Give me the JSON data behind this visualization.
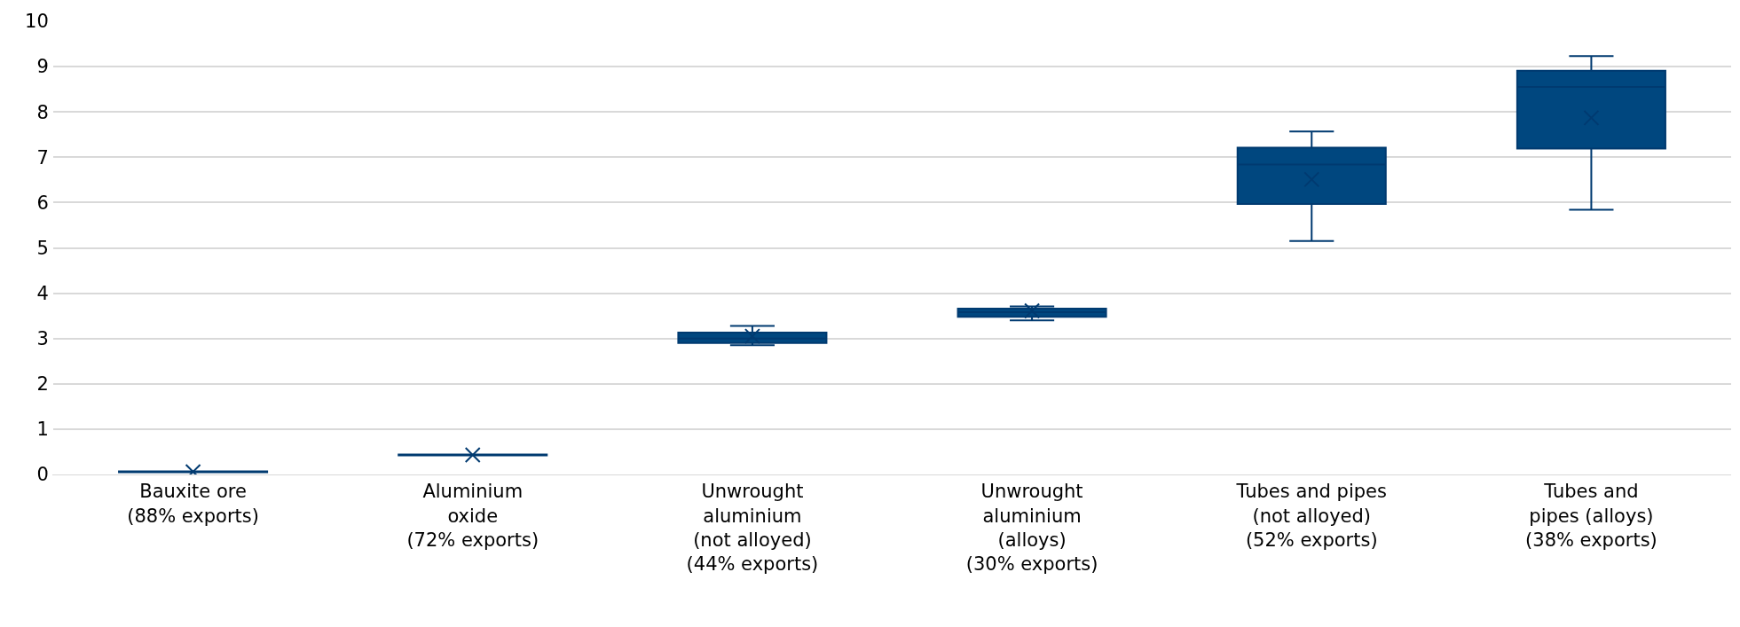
{
  "chart_data": {
    "type": "box",
    "categories": [
      "Bauxite ore\n(88% exports)",
      "Aluminium\noxide\n(72% exports)",
      "Unwrought\naluminium\n(not alloyed)\n(44% exports)",
      "Unwrought\naluminium\n(alloys)\n(30% exports)",
      "Tubes and pipes\n(not alloyed)\n(52% exports)",
      "Tubes and\npipes (alloys)\n(38% exports)"
    ],
    "color": "#00477f",
    "boxes": [
      {
        "low": 0.05,
        "q1": 0.05,
        "median": 0.06,
        "q3": 0.07,
        "high": 0.07,
        "mean": 0.06
      },
      {
        "low": 0.42,
        "q1": 0.42,
        "median": 0.43,
        "q3": 0.44,
        "high": 0.44,
        "mean": 0.43
      },
      {
        "low": 2.85,
        "q1": 2.9,
        "median": 3.0,
        "q3": 3.13,
        "high": 3.28,
        "mean": 3.05
      },
      {
        "low": 3.4,
        "q1": 3.48,
        "median": 3.58,
        "q3": 3.66,
        "high": 3.71,
        "mean": 3.61
      },
      {
        "low": 5.15,
        "q1": 5.97,
        "median": 6.84,
        "q3": 7.21,
        "high": 7.57,
        "mean": 6.51
      },
      {
        "low": 5.84,
        "q1": 7.19,
        "median": 8.55,
        "q3": 8.91,
        "high": 9.23,
        "mean": 7.87
      }
    ],
    "ylim": [
      0,
      10
    ],
    "yticks": [
      0,
      1,
      2,
      3,
      4,
      5,
      6,
      7,
      8,
      9,
      10
    ],
    "grid": "y"
  }
}
